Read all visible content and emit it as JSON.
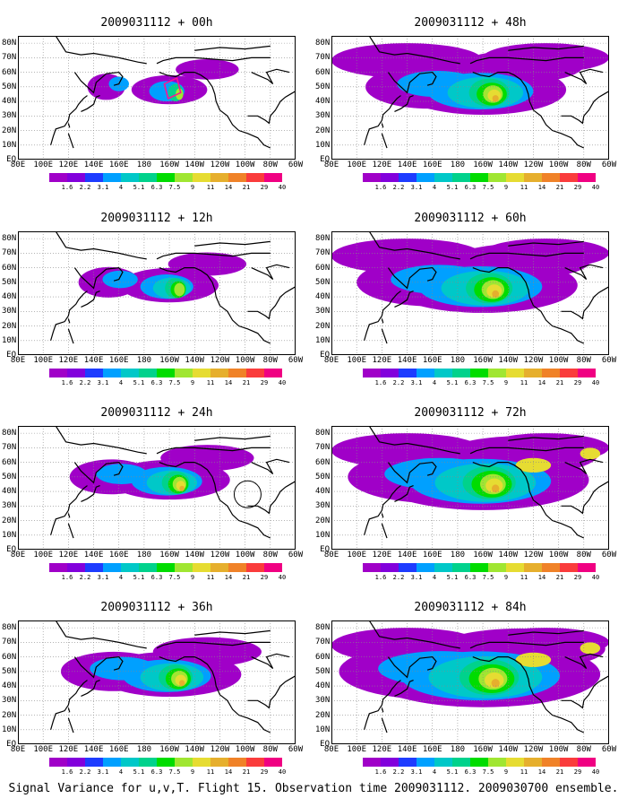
{
  "palette": [
    "#a000c8",
    "#8200dc",
    "#1e3cff",
    "#00a0ff",
    "#00c8c8",
    "#00d28c",
    "#00dc00",
    "#a0e632",
    "#e6dc32",
    "#e6af2d",
    "#f08228",
    "#fa3c3c",
    "#f00082"
  ],
  "colorbar_labels": [
    "1.6",
    "2.2",
    "3.1",
    "4",
    "5.1",
    "6.3",
    "7.5",
    "9",
    "11",
    "14",
    "21",
    "29",
    "40"
  ],
  "lat_labels": [
    "80N",
    "70N",
    "60N",
    "50N",
    "40N",
    "30N",
    "20N",
    "10N",
    "EQ"
  ],
  "lon_labels": [
    "80E",
    "100E",
    "120E",
    "140E",
    "160E",
    "180",
    "160W",
    "140W",
    "120W",
    "100W",
    "80W",
    "60W"
  ],
  "panels": [
    {
      "title": "2009031112 + 00h",
      "level": 0
    },
    {
      "title": "2009031112 + 48h",
      "level": 4
    },
    {
      "title": "2009031112 + 12h",
      "level": 1
    },
    {
      "title": "2009031112 + 60h",
      "level": 5
    },
    {
      "title": "2009031112 + 24h",
      "level": 2
    },
    {
      "title": "2009031112 + 72h",
      "level": 6
    },
    {
      "title": "2009031112 + 36h",
      "level": 3
    },
    {
      "title": "2009031112 + 84h",
      "level": 7
    }
  ],
  "footer": "Signal Variance for u,v,T. Flight 15. Observation time 2009031112. 2009030700 ensemble."
}
